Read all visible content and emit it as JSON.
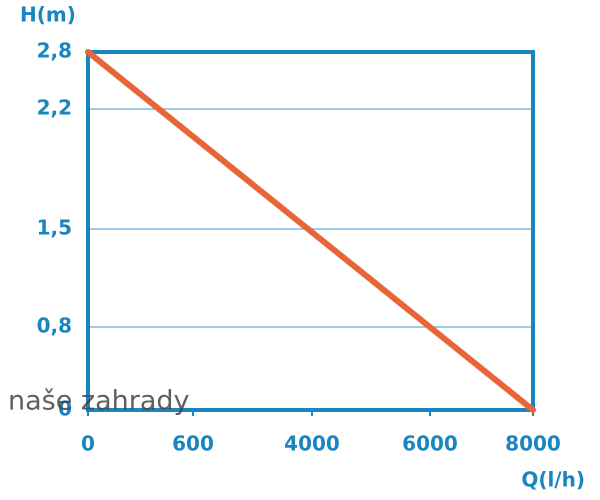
{
  "chart_data": {
    "type": "line",
    "y_label": "H(m)",
    "x_label": "Q(l/h)",
    "watermark": "naše zahrady",
    "x": [
      0,
      8000
    ],
    "series": [
      {
        "color": "#e8653a",
        "values": [
          2.8,
          0
        ]
      }
    ],
    "xlim": [
      0,
      8000
    ],
    "xticks": [
      0,
      600,
      4000,
      6000,
      8000
    ],
    "ylim": [
      0,
      2.8
    ],
    "yticks": [
      0,
      {
        "value": 0.8,
        "label": "0,8"
      },
      {
        "value": 1.5,
        "label": "1,5"
      },
      {
        "value": 2.2,
        "label": "2,2"
      },
      {
        "value": 2.8,
        "label": "2,8"
      }
    ],
    "grid": true
  }
}
